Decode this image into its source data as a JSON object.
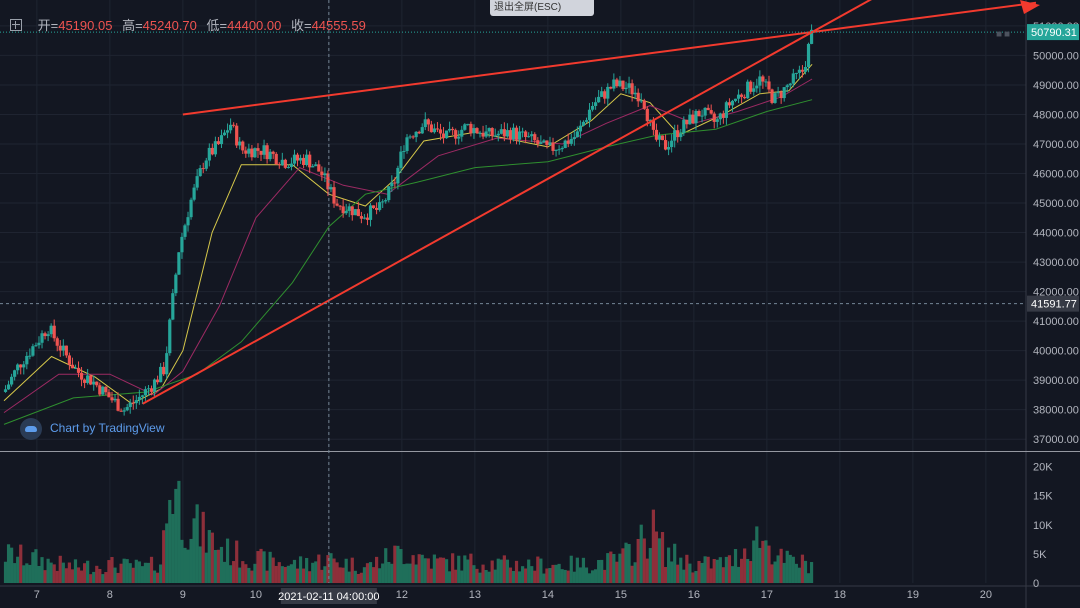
{
  "header": {
    "open_label": "开=",
    "open_value": "45190.05",
    "high_label": "高=",
    "high_value": "45240.70",
    "low_label": "低=",
    "low_value": "44400.00",
    "close_label": "收=",
    "close_value": "44555.59"
  },
  "exit_fullscreen_label": "退出全屏(ESC)",
  "watermark": "Chart by TradingView",
  "colors": {
    "background": "#131722",
    "up": "#26a69a",
    "down": "#ef5350",
    "trendline": "#f23a2e",
    "ma_yellow": "#d6c84a",
    "ma_purple": "#9c2a63",
    "ma_green": "#2f8f2f",
    "grid": "#1f2431"
  },
  "chart_data": {
    "type": "candlestick",
    "x_ticks": [
      "7",
      "8",
      "9",
      "10",
      "11",
      "12",
      "13",
      "14",
      "15",
      "16",
      "17",
      "18",
      "19",
      "20"
    ],
    "price_ticks": [
      51000,
      50000,
      49000,
      48000,
      47000,
      46000,
      45000,
      44000,
      43000,
      42000,
      41000,
      40000,
      39000,
      38000,
      37000
    ],
    "price_tick_labels": [
      "51000.00",
      "50000.00",
      "49000.00",
      "48000.00",
      "47000.00",
      "46000.00",
      "45000.00",
      "44000.00",
      "43000.00",
      "42000.00",
      "41000.00",
      "40000.00",
      "39000.00",
      "38000.00",
      "37000.00"
    ],
    "volume_ticks": [
      0,
      5000,
      10000,
      15000,
      20000
    ],
    "volume_tick_labels": [
      "0",
      "5K",
      "10K",
      "15K",
      "20K"
    ],
    "ylim_price": [
      36600,
      51200
    ],
    "ylim_volume": [
      0,
      22000
    ],
    "xlim_days": [
      6.55,
      20.55
    ],
    "last_price_label": "50790.31",
    "last_price": 50790.31,
    "crosshair_price_label": "41591.77",
    "crosshair_price": 41591.77,
    "crosshair_time_label": "2021-02-11 04:00:00",
    "crosshair_day": 11.0,
    "price_path": [
      [
        6.55,
        38600
      ],
      [
        6.75,
        39500
      ],
      [
        7.0,
        40300
      ],
      [
        7.15,
        40800
      ],
      [
        7.35,
        40000
      ],
      [
        7.55,
        39300
      ],
      [
        7.75,
        39000
      ],
      [
        8.0,
        38400
      ],
      [
        8.2,
        38000
      ],
      [
        8.4,
        38400
      ],
      [
        8.6,
        38900
      ],
      [
        8.75,
        39400
      ],
      [
        8.85,
        41500
      ],
      [
        8.95,
        43500
      ],
      [
        9.1,
        45000
      ],
      [
        9.3,
        46500
      ],
      [
        9.5,
        47000
      ],
      [
        9.65,
        47700
      ],
      [
        9.8,
        46800
      ],
      [
        10.1,
        46800
      ],
      [
        10.4,
        46400
      ],
      [
        10.7,
        46500
      ],
      [
        10.9,
        46000
      ],
      [
        11.1,
        45000
      ],
      [
        11.3,
        44800
      ],
      [
        11.45,
        44600
      ],
      [
        11.7,
        44800
      ],
      [
        11.9,
        45700
      ],
      [
        12.05,
        47200
      ],
      [
        12.3,
        47700
      ],
      [
        12.6,
        47200
      ],
      [
        12.9,
        47600
      ],
      [
        13.2,
        47300
      ],
      [
        13.5,
        47400
      ],
      [
        13.8,
        47100
      ],
      [
        14.0,
        46800
      ],
      [
        14.2,
        47000
      ],
      [
        14.4,
        47300
      ],
      [
        14.6,
        48300
      ],
      [
        14.9,
        49000
      ],
      [
        15.1,
        48900
      ],
      [
        15.3,
        48600
      ],
      [
        15.45,
        47200
      ],
      [
        15.6,
        46900
      ],
      [
        15.8,
        47500
      ],
      [
        16.1,
        48100
      ],
      [
        16.3,
        47700
      ],
      [
        16.5,
        48400
      ],
      [
        16.7,
        48800
      ],
      [
        16.9,
        49200
      ],
      [
        17.1,
        48500
      ],
      [
        17.3,
        49000
      ],
      [
        17.5,
        49500
      ],
      [
        17.62,
        50800
      ]
    ],
    "moving_averages": [
      {
        "color": "#d6c84a",
        "points": [
          [
            6.55,
            38300
          ],
          [
            7.2,
            39800
          ],
          [
            7.8,
            39100
          ],
          [
            8.3,
            38200
          ],
          [
            8.7,
            38700
          ],
          [
            9.0,
            40000
          ],
          [
            9.4,
            44000
          ],
          [
            9.8,
            46300
          ],
          [
            10.5,
            46300
          ],
          [
            11.0,
            45300
          ],
          [
            11.5,
            44900
          ],
          [
            11.9,
            45800
          ],
          [
            12.3,
            47100
          ],
          [
            13.0,
            47400
          ],
          [
            14.0,
            46900
          ],
          [
            14.6,
            47800
          ],
          [
            15.0,
            48700
          ],
          [
            15.4,
            48400
          ],
          [
            15.8,
            47300
          ],
          [
            16.4,
            48000
          ],
          [
            16.9,
            48700
          ],
          [
            17.3,
            48800
          ],
          [
            17.62,
            49700
          ]
        ]
      },
      {
        "color": "#9c2a63",
        "points": [
          [
            6.55,
            37900
          ],
          [
            7.3,
            39200
          ],
          [
            8.0,
            39200
          ],
          [
            8.6,
            38500
          ],
          [
            9.0,
            39300
          ],
          [
            9.5,
            41500
          ],
          [
            10.0,
            44500
          ],
          [
            10.6,
            46200
          ],
          [
            11.2,
            45600
          ],
          [
            11.8,
            45300
          ],
          [
            12.5,
            46600
          ],
          [
            13.3,
            47200
          ],
          [
            14.2,
            47000
          ],
          [
            14.8,
            47700
          ],
          [
            15.4,
            48300
          ],
          [
            16.0,
            47700
          ],
          [
            16.6,
            48100
          ],
          [
            17.2,
            48600
          ],
          [
            17.62,
            49200
          ]
        ]
      },
      {
        "color": "#2f8f2f",
        "points": [
          [
            6.55,
            37500
          ],
          [
            7.5,
            38400
          ],
          [
            8.5,
            38600
          ],
          [
            9.2,
            39200
          ],
          [
            9.8,
            40300
          ],
          [
            10.5,
            42300
          ],
          [
            11.0,
            44200
          ],
          [
            11.5,
            45300
          ],
          [
            12.2,
            45700
          ],
          [
            13.0,
            46200
          ],
          [
            14.0,
            46400
          ],
          [
            14.8,
            46900
          ],
          [
            15.5,
            47300
          ],
          [
            16.3,
            47500
          ],
          [
            17.0,
            48100
          ],
          [
            17.62,
            48500
          ]
        ]
      }
    ],
    "trendlines": [
      {
        "from": [
          9.0,
          48000
        ],
        "to": [
          17.62,
          50790
        ]
      },
      {
        "from": [
          8.45,
          38200
        ],
        "to": [
          17.62,
          50790
        ]
      }
    ],
    "volume_profile": [
      [
        6.55,
        5500
      ],
      [
        7.0,
        4500
      ],
      [
        7.5,
        3000
      ],
      [
        8.0,
        3500
      ],
      [
        8.5,
        3000
      ],
      [
        8.7,
        4000
      ],
      [
        8.85,
        20500
      ],
      [
        9.0,
        13000
      ],
      [
        9.3,
        9000
      ],
      [
        9.6,
        6000
      ],
      [
        10.0,
        4500
      ],
      [
        10.5,
        3500
      ],
      [
        11.0,
        4500
      ],
      [
        11.5,
        3000
      ],
      [
        12.0,
        6000
      ],
      [
        12.5,
        4000
      ],
      [
        13.0,
        4000
      ],
      [
        13.5,
        3500
      ],
      [
        14.0,
        3500
      ],
      [
        14.5,
        3500
      ],
      [
        15.0,
        4500
      ],
      [
        15.45,
        10000
      ],
      [
        15.6,
        6000
      ],
      [
        16.0,
        3500
      ],
      [
        16.5,
        4000
      ],
      [
        16.9,
        9000
      ],
      [
        17.2,
        4500
      ],
      [
        17.62,
        3500
      ]
    ]
  }
}
